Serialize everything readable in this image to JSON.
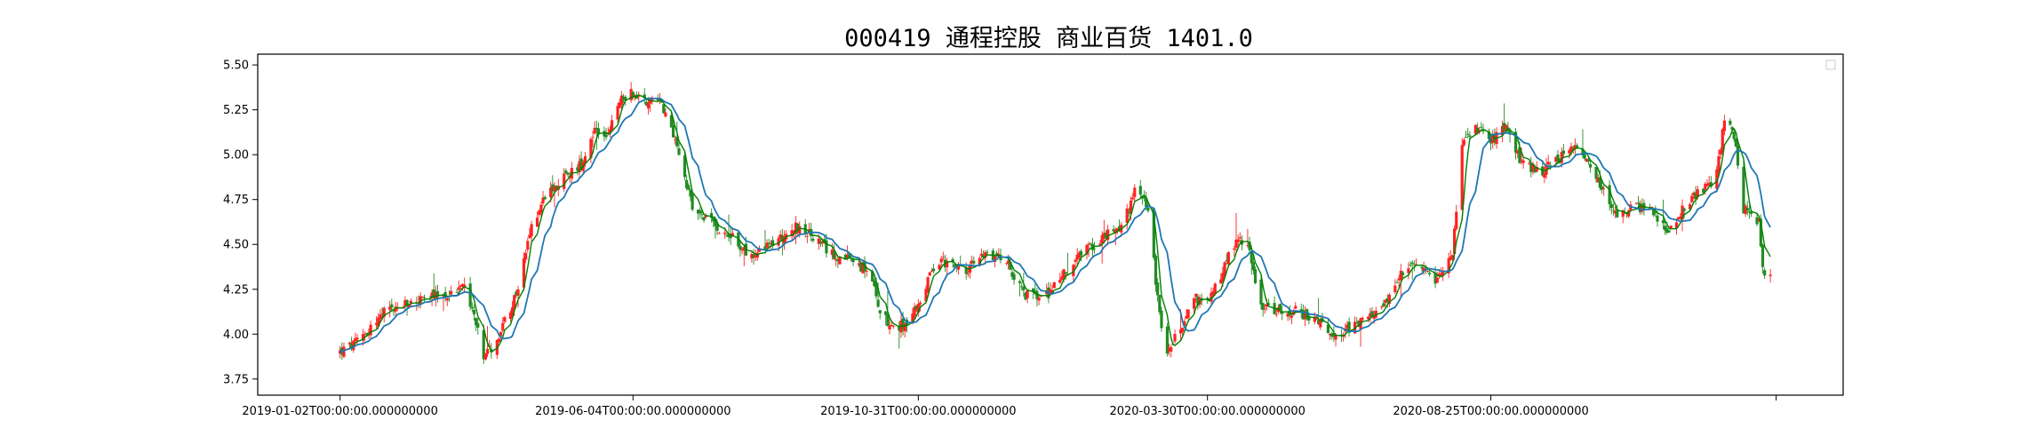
{
  "chart_data": {
    "type": "candlestick",
    "title": "000419 通程控股 商业百货 1401.0",
    "xlabel": "",
    "ylabel": "",
    "ylim": [
      3.66,
      5.56
    ],
    "y_ticks": [
      "3.75",
      "4.00",
      "4.25",
      "4.50",
      "4.75",
      "5.00",
      "5.25",
      "5.50"
    ],
    "x_ticks": [
      {
        "date": "2019-01-02",
        "label": "2019-01-02T00:00:00.000000000"
      },
      {
        "date": "2019-06-04",
        "label": "2019-06-04T00:00:00.000000000"
      },
      {
        "date": "2019-10-31",
        "label": "2019-10-31T00:00:00.000000000"
      },
      {
        "date": "2020-03-30",
        "label": "2020-03-30T00:00:00.000000000"
      },
      {
        "date": "2020-08-25",
        "label": "2020-08-25T00:00:00.000000000"
      },
      {
        "date": "2021-01-21",
        "label": ""
      }
    ],
    "x_range": [
      "2018-11-20",
      "2021-02-25"
    ],
    "data_range": [
      "2019-01-02",
      "2021-01-18"
    ],
    "price_path": [
      [
        "2019-01-02",
        3.9
      ],
      [
        "2019-01-10",
        3.95
      ],
      [
        "2019-01-25",
        4.12
      ],
      [
        "2019-02-15",
        4.2
      ],
      [
        "2019-03-01",
        4.22
      ],
      [
        "2019-03-08",
        4.28
      ],
      [
        "2019-03-14",
        4.06
      ],
      [
        "2019-03-18",
        3.85
      ],
      [
        "2019-03-26",
        4.0
      ],
      [
        "2019-04-05",
        4.25
      ],
      [
        "2019-04-12",
        4.6
      ],
      [
        "2019-04-20",
        4.8
      ],
      [
        "2019-04-30",
        4.88
      ],
      [
        "2019-05-08",
        4.95
      ],
      [
        "2019-05-15",
        5.15
      ],
      [
        "2019-05-22",
        5.1
      ],
      [
        "2019-05-28",
        5.3
      ],
      [
        "2019-06-03",
        5.35
      ],
      [
        "2019-06-10",
        5.3
      ],
      [
        "2019-06-18",
        5.32
      ],
      [
        "2019-06-28",
        5.0
      ],
      [
        "2019-07-05",
        4.7
      ],
      [
        "2019-07-15",
        4.62
      ],
      [
        "2019-07-25",
        4.55
      ],
      [
        "2019-08-05",
        4.42
      ],
      [
        "2019-08-15",
        4.5
      ],
      [
        "2019-08-28",
        4.6
      ],
      [
        "2019-09-05",
        4.55
      ],
      [
        "2019-09-15",
        4.45
      ],
      [
        "2019-09-28",
        4.4
      ],
      [
        "2019-10-05",
        4.35
      ],
      [
        "2019-10-12",
        4.1
      ],
      [
        "2019-10-20",
        4.03
      ],
      [
        "2019-10-28",
        4.1
      ],
      [
        "2019-11-10",
        4.42
      ],
      [
        "2019-11-25",
        4.35
      ],
      [
        "2019-12-05",
        4.45
      ],
      [
        "2019-12-15",
        4.43
      ],
      [
        "2019-12-25",
        4.22
      ],
      [
        "2020-01-05",
        4.2
      ],
      [
        "2020-01-12",
        4.3
      ],
      [
        "2020-01-25",
        4.45
      ],
      [
        "2020-02-05",
        4.55
      ],
      [
        "2020-02-15",
        4.6
      ],
      [
        "2020-02-22",
        4.85
      ],
      [
        "2020-02-28",
        4.7
      ],
      [
        "2020-03-04",
        4.2
      ],
      [
        "2020-03-08",
        3.9
      ],
      [
        "2020-03-15",
        4.0
      ],
      [
        "2020-03-22",
        4.22
      ],
      [
        "2020-03-29",
        4.15
      ],
      [
        "2020-04-05",
        4.3
      ],
      [
        "2020-04-12",
        4.5
      ],
      [
        "2020-04-20",
        4.52
      ],
      [
        "2020-04-27",
        4.15
      ],
      [
        "2020-05-05",
        4.12
      ],
      [
        "2020-05-15",
        4.13
      ],
      [
        "2020-05-25",
        4.08
      ],
      [
        "2020-06-05",
        4.0
      ],
      [
        "2020-06-15",
        4.05
      ],
      [
        "2020-06-25",
        4.1
      ],
      [
        "2020-07-05",
        4.25
      ],
      [
        "2020-07-12",
        4.38
      ],
      [
        "2020-07-20",
        4.35
      ],
      [
        "2020-07-28",
        4.3
      ],
      [
        "2020-08-05",
        4.45
      ],
      [
        "2020-08-10",
        5.05
      ],
      [
        "2020-08-18",
        5.15
      ],
      [
        "2020-08-25",
        5.08
      ],
      [
        "2020-09-02",
        5.15
      ],
      [
        "2020-09-10",
        4.95
      ],
      [
        "2020-09-20",
        4.9
      ],
      [
        "2020-09-30",
        4.98
      ],
      [
        "2020-10-10",
        5.05
      ],
      [
        "2020-10-20",
        4.85
      ],
      [
        "2020-10-30",
        4.65
      ],
      [
        "2020-11-08",
        4.72
      ],
      [
        "2020-11-18",
        4.68
      ],
      [
        "2020-11-25",
        4.58
      ],
      [
        "2020-12-05",
        4.72
      ],
      [
        "2020-12-15",
        4.82
      ],
      [
        "2020-12-20",
        4.82
      ],
      [
        "2020-12-25",
        5.2
      ],
      [
        "2020-12-30",
        5.1
      ],
      [
        "2021-01-04",
        4.7
      ],
      [
        "2021-01-08",
        4.65
      ],
      [
        "2021-01-12",
        4.62
      ],
      [
        "2021-01-14",
        4.35
      ],
      [
        "2021-01-18",
        4.33
      ]
    ],
    "series": [
      {
        "kind": "candlestick",
        "up_color": "#ff2222",
        "down_color": "#228b22"
      },
      {
        "kind": "moving-average",
        "color": "#1f77b4"
      },
      {
        "kind": "moving-average",
        "color": "#008000"
      }
    ],
    "grid": false,
    "legend": "top-right"
  }
}
